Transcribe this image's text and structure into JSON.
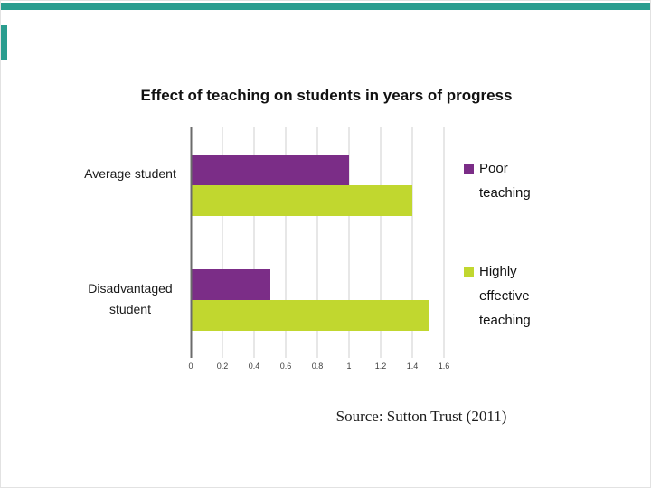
{
  "page": {
    "edge_color": "#2a9d8f",
    "grid_color": "#cfcfcf"
  },
  "chart_data": {
    "type": "bar",
    "orientation": "horizontal",
    "title": "Effect of teaching on students in years of progress",
    "categories": [
      "Average student",
      "Disadvantaged student"
    ],
    "series": [
      {
        "name": "Poor teaching",
        "color": "#7b2d87",
        "values": [
          1.0,
          0.5
        ]
      },
      {
        "name": "Highly effective teaching",
        "color": "#c1d72f",
        "values": [
          1.4,
          1.5
        ]
      }
    ],
    "xlim": [
      0,
      1.6
    ],
    "xticks": [
      0,
      0.2,
      0.4,
      0.6,
      0.8,
      1,
      1.2,
      1.4,
      1.6
    ],
    "xtick_labels": [
      "0",
      "0.2",
      "0.4",
      "0.6",
      "0.8",
      "1",
      "1.2",
      "1.4",
      "1.6"
    ],
    "grid": true,
    "legend_position": "right"
  },
  "source": {
    "text": "Source: Sutton Trust (2011)"
  }
}
